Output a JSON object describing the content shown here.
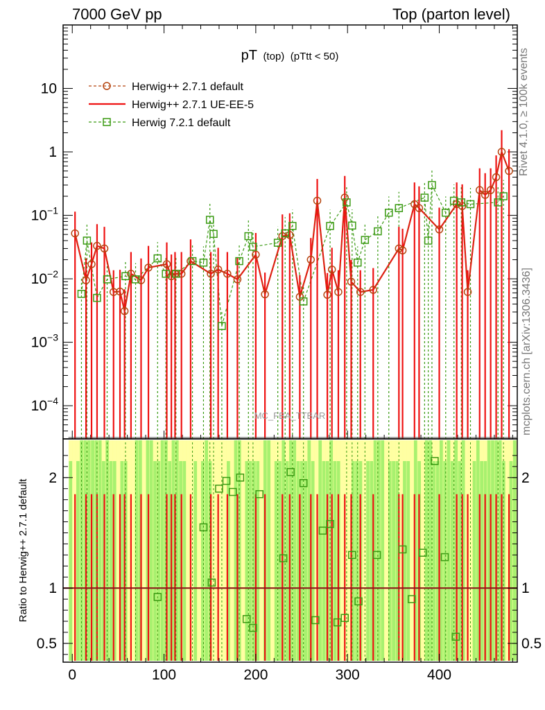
{
  "header": {
    "left": "7000 GeV pp",
    "right": "Top (parton level)"
  },
  "side_labels": {
    "rivet": "Rivet 4.1.0, ≥ 100k events",
    "mcplots": "mcplots.cern.ch [arXiv:1306.3436]"
  },
  "chart_data": {
    "type": "line",
    "title_main": "pT",
    "title_sub1": "(top)",
    "title_sub2": "(pTtt < 50)",
    "watermark": "MC_FBA_TTBAR",
    "xlabel": "",
    "ylabel_ratio": "Ratio to Herwig++ 2.7.1 default",
    "xlim": [
      -10,
      485
    ],
    "ylim": [
      3e-05,
      100
    ],
    "ratio_ylim": [
      0.33,
      2.35
    ],
    "yscale": "log",
    "x_ticks": [
      0,
      100,
      200,
      300,
      400
    ],
    "y_ticks": [
      0.0001,
      0.001,
      0.01,
      0.1,
      1,
      10
    ],
    "y_tick_labels": [
      {
        "base": "10",
        "exp": "−4"
      },
      {
        "base": "10",
        "exp": "−3"
      },
      {
        "base": "10",
        "exp": "−2"
      },
      {
        "base": "10",
        "exp": "−1"
      },
      {
        "base": "1",
        "exp": ""
      },
      {
        "base": "10",
        "exp": ""
      }
    ],
    "ratio_ticks": [
      0.5,
      1,
      2
    ],
    "ratio_tick_labels": [
      "0.5",
      "1",
      "2"
    ],
    "legend": [
      {
        "label": "Herwig++ 2.7.1 default",
        "color": "#b5440f",
        "style": "dashed-circle"
      },
      {
        "label": "Herwig++ 2.7.1 UE-EE-5",
        "color": "#ee1111",
        "style": "solid"
      },
      {
        "label": "Herwig 7.2.1 default",
        "color": "#3a9a12",
        "style": "dashed-square"
      }
    ],
    "series": [
      {
        "name": "Herwig++ 2.7.1 default",
        "color": "#b5440f",
        "x": [
          3,
          15,
          21,
          27,
          35,
          45,
          52,
          57,
          64,
          75,
          83,
          103,
          108,
          112,
          119,
          129,
          151,
          159,
          169,
          180,
          200,
          210,
          229,
          237,
          248,
          260,
          267,
          278,
          283,
          290,
          297,
          304,
          314,
          328,
          356,
          360,
          373,
          378,
          400,
          419,
          425,
          431,
          444,
          450,
          456,
          462,
          468,
          476
        ],
        "y": [
          0.052,
          0.0095,
          0.017,
          0.033,
          0.03,
          0.0062,
          0.0063,
          0.0031,
          0.012,
          0.0095,
          0.015,
          0.017,
          0.011,
          0.012,
          0.012,
          0.019,
          0.012,
          0.014,
          0.012,
          0.0098,
          0.024,
          0.0057,
          0.047,
          0.049,
          0.0052,
          0.02,
          0.17,
          0.0056,
          0.014,
          0.0062,
          0.19,
          0.009,
          0.0062,
          0.0067,
          0.03,
          0.028,
          0.15,
          0.13,
          0.06,
          0.15,
          0.14,
          0.0062,
          0.25,
          0.21,
          0.25,
          0.4,
          1.0,
          0.5
        ]
      },
      {
        "name": "Herwig++ 2.7.1 UE-EE-5",
        "color": "#ee1111",
        "x": [
          3,
          15,
          21,
          27,
          35,
          45,
          52,
          57,
          64,
          75,
          83,
          103,
          108,
          112,
          119,
          129,
          151,
          159,
          169,
          180,
          200,
          210,
          229,
          237,
          248,
          260,
          267,
          278,
          283,
          290,
          297,
          304,
          314,
          328,
          356,
          360,
          373,
          378,
          400,
          419,
          425,
          431,
          444,
          450,
          456,
          462,
          468,
          476
        ],
        "y": [
          0.052,
          0.0095,
          0.017,
          0.033,
          0.03,
          0.0062,
          0.0063,
          0.0031,
          0.012,
          0.0095,
          0.015,
          0.017,
          0.011,
          0.012,
          0.012,
          0.019,
          0.012,
          0.014,
          0.012,
          0.0098,
          0.024,
          0.0057,
          0.047,
          0.049,
          0.0052,
          0.02,
          0.17,
          0.0056,
          0.014,
          0.0062,
          0.19,
          0.009,
          0.0062,
          0.0067,
          0.03,
          0.028,
          0.15,
          0.13,
          0.06,
          0.15,
          0.14,
          0.0062,
          0.25,
          0.21,
          0.25,
          0.4,
          1.0,
          0.5
        ]
      },
      {
        "name": "Herwig 7.2.1 default",
        "color": "#3a9a12",
        "x": [
          10,
          16,
          27,
          38,
          58,
          69,
          93,
          102,
          113,
          131,
          143,
          150,
          154,
          163,
          182,
          192,
          197,
          224,
          232,
          240,
          252,
          281,
          299,
          305,
          311,
          319,
          333,
          345,
          356,
          384,
          388,
          392,
          407,
          416,
          424,
          434,
          464,
          470
        ],
        "y": [
          0.0058,
          0.04,
          0.005,
          0.0098,
          0.011,
          0.0098,
          0.021,
          0.012,
          0.012,
          0.019,
          0.018,
          0.085,
          0.051,
          0.0018,
          0.019,
          0.047,
          0.032,
          0.037,
          0.052,
          0.068,
          0.0044,
          0.068,
          0.16,
          0.069,
          0.018,
          0.041,
          0.056,
          0.11,
          0.13,
          0.19,
          0.04,
          0.3,
          0.11,
          0.17,
          0.16,
          0.15,
          0.16,
          0.2
        ]
      }
    ],
    "ratio_series": [
      {
        "name": "Herwig++ 2.7.1 UE-EE-5",
        "value": 1.0
      },
      {
        "name": "Herwig 7.2.1 default",
        "x": [
          93,
          143,
          152,
          160,
          168,
          175,
          183,
          190,
          197,
          204,
          230,
          238,
          252,
          265,
          273,
          281,
          289,
          297,
          305,
          312,
          332,
          360,
          370,
          382,
          395,
          406,
          418
        ],
        "y": [
          0.92,
          1.55,
          1.05,
          1.9,
          1.97,
          1.87,
          2.0,
          0.72,
          0.64,
          1.85,
          1.27,
          2.05,
          1.95,
          0.71,
          1.52,
          1.58,
          0.69,
          0.73,
          1.3,
          0.88,
          1.3,
          1.35,
          0.9,
          1.32,
          2.15,
          1.28,
          0.56
        ]
      }
    ]
  }
}
